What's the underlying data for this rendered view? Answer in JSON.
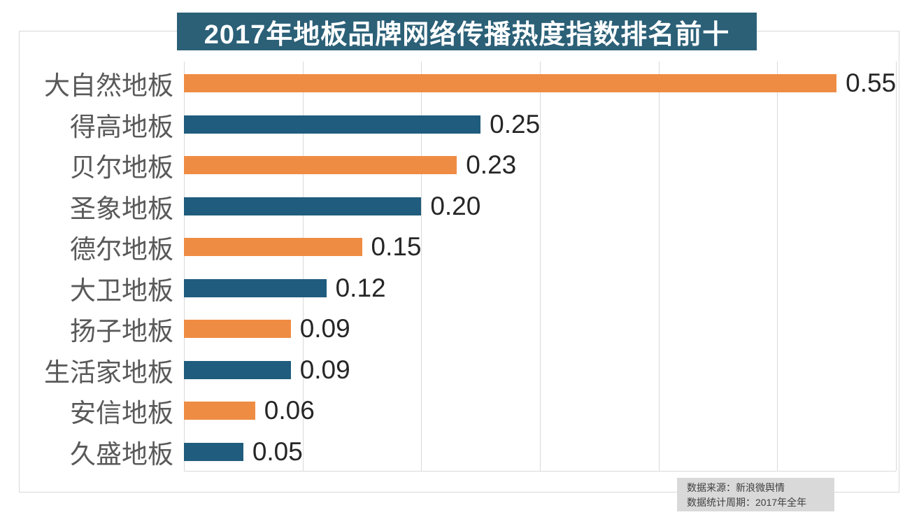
{
  "chart_data": {
    "type": "bar",
    "orientation": "horizontal",
    "title": "2017年地板品牌网络传播热度指数排名前十",
    "categories": [
      "大自然地板",
      "得高地板",
      "贝尔地板",
      "圣象地板",
      "德尔地板",
      "大卫地板",
      "扬子地板",
      "生活家地板",
      "安信地板",
      "久盛地板"
    ],
    "values": [
      0.55,
      0.25,
      0.23,
      0.2,
      0.15,
      0.12,
      0.09,
      0.09,
      0.06,
      0.05
    ],
    "value_labels": [
      "0.55",
      "0.25",
      "0.23",
      "0.20",
      "0.15",
      "0.12",
      "0.09",
      "0.09",
      "0.06",
      "0.05"
    ],
    "xlabel": "",
    "ylabel": "",
    "xlim": [
      0,
      0.6
    ],
    "grid_interval": 0.1,
    "grid": "vertical gridlines only, no tick labels",
    "legend_position": "none",
    "colors": {
      "bar_orange": "#EF8C44",
      "bar_blue": "#1F5C7D",
      "title_bg": "#2B6077",
      "title_text": "#FFFFFF",
      "category_label": "#595959",
      "value_label": "#262626",
      "gridline": "#D9D9D9",
      "border": "#D9D9D9",
      "source_bg": "#D9D9D9",
      "source_text": "#404040",
      "background": "#FFFFFF"
    }
  },
  "source": {
    "line1": "数据来源：新浪微舆情",
    "line2": "数据统计周期：2017年全年"
  }
}
